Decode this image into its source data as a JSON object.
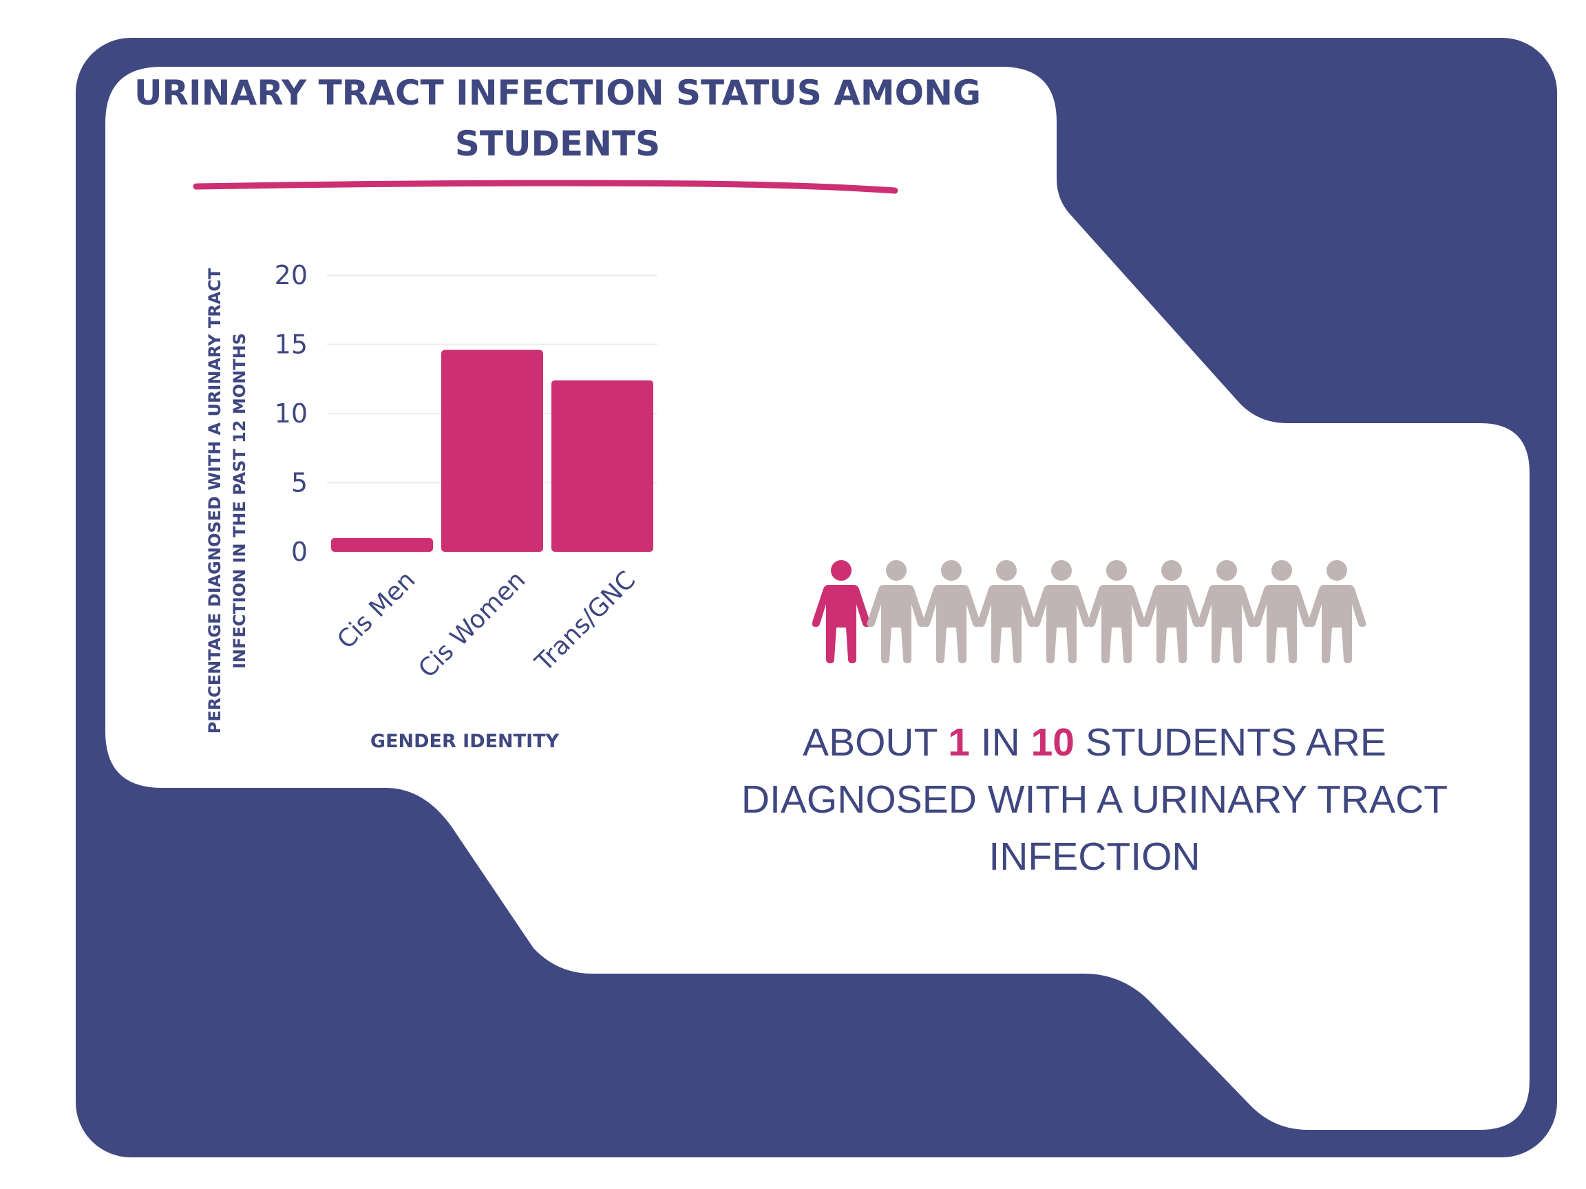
{
  "colors": {
    "frame": "#404882",
    "panel": "#ffffff",
    "accent": "#cc2f72",
    "muted_figure": "#c1b4b4",
    "text": "#3f4780",
    "tick_text": "#3f4780",
    "gridline": "#ececec"
  },
  "title": "URINARY TRACT INFECTION STATUS AMONG STUDENTS",
  "chart_data": {
    "type": "bar",
    "title": "URINARY TRACT INFECTION STATUS AMONG STUDENTS",
    "categories": [
      "Cis Men",
      "Cis Women",
      "Trans/GNC"
    ],
    "values": [
      1,
      14.6,
      12.4
    ],
    "xlabel": "GENDER IDENTITY",
    "ylabel": "PERCENTAGE DIAGNOSED WITH A URINARY TRACT INFECTION IN THE PAST 12 MONTHS",
    "ylim": [
      0,
      20
    ],
    "yticks": [
      "0",
      "5",
      "10",
      "15",
      "20"
    ],
    "grid": true,
    "legend": "none"
  },
  "stat": {
    "prefix": "ABOUT ",
    "num1": "1",
    "mid": " IN ",
    "num2": "10",
    "suffix": " STUDENTS ARE DIAGNOSED WITH A URINARY TRACT INFECTION"
  },
  "pictogram": {
    "total": 10,
    "highlighted": 1,
    "icon": "person-icon"
  }
}
